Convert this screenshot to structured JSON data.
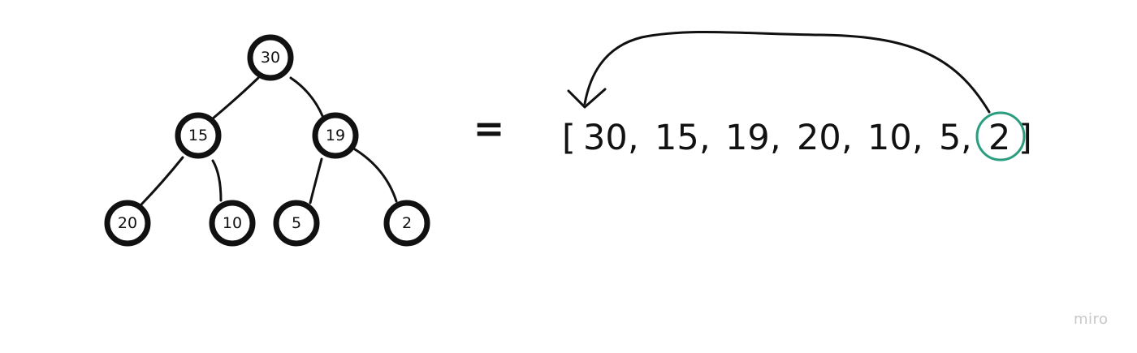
{
  "tree": {
    "nodes": [
      {
        "id": "root",
        "label": "30"
      },
      {
        "id": "n15",
        "label": "15"
      },
      {
        "id": "n19",
        "label": "19"
      },
      {
        "id": "n20",
        "label": "20"
      },
      {
        "id": "n10",
        "label": "10"
      },
      {
        "id": "n5",
        "label": "5"
      },
      {
        "id": "n2",
        "label": "2"
      }
    ],
    "edges": [
      [
        "root",
        "n15"
      ],
      [
        "root",
        "n19"
      ],
      [
        "n15",
        "n20"
      ],
      [
        "n15",
        "n10"
      ],
      [
        "n19",
        "n5"
      ],
      [
        "n19",
        "n2"
      ]
    ]
  },
  "equals_sign": "=",
  "array": {
    "open_bracket": "[",
    "close_bracket": "]",
    "items": [
      "30",
      "15",
      "19",
      "20",
      "10",
      "5",
      "2"
    ],
    "separator": ",",
    "highlighted_index": 6
  },
  "watermark": "miro",
  "colors": {
    "stroke": "#111111",
    "highlight": "#2a9d7f",
    "watermark": "#c8c8c8"
  }
}
